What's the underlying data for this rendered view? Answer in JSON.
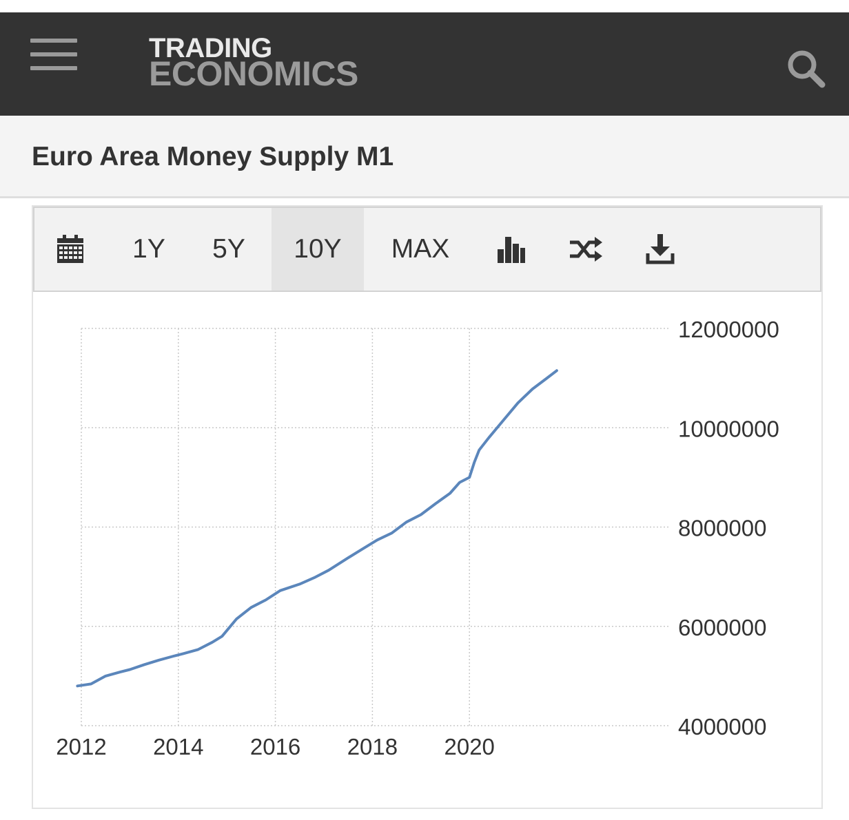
{
  "header": {
    "logo_line1": "TRADING",
    "logo_line2": "ECONOMICS",
    "menu_icon": "hamburger-menu-icon",
    "search_icon": "search-icon",
    "background": "#333333"
  },
  "page": {
    "title": "Euro Area Money Supply M1"
  },
  "toolbar": {
    "calendar_icon": "calendar-icon",
    "ranges": [
      "1Y",
      "5Y",
      "10Y",
      "MAX"
    ],
    "active_range": "10Y",
    "bar_chart_icon": "bar-chart-icon",
    "compare_icon": "shuffle-icon",
    "download_icon": "download-icon"
  },
  "chart_data": {
    "type": "line",
    "title": "",
    "xlabel": "",
    "ylabel": "",
    "x_ticks": [
      "2012",
      "2014",
      "2016",
      "2018",
      "2020"
    ],
    "y_ticks": [
      "4000000",
      "6000000",
      "8000000",
      "10000000",
      "12000000"
    ],
    "xlim": [
      2012,
      2022
    ],
    "ylim": [
      4000000,
      12000000
    ],
    "y_axis_position": "right",
    "grid": "dotted",
    "line_color": "#5b86bb",
    "series": [
      {
        "x": [
          2011.92,
          2012.2,
          2012.5,
          2012.8,
          2013.0,
          2013.3,
          2013.6,
          2013.9,
          2014.1,
          2014.4,
          2014.7,
          2014.9,
          2015.2,
          2015.5,
          2015.8,
          2016.1,
          2016.5,
          2016.8,
          2017.1,
          2017.5,
          2017.8,
          2018.1,
          2018.4,
          2018.7,
          2019.0,
          2019.3,
          2019.6,
          2019.8,
          2020.0,
          2020.1,
          2020.2,
          2020.4,
          2020.7,
          2021.0,
          2021.3,
          2021.6,
          2021.8
        ],
        "y": [
          4800000,
          4840000,
          5000000,
          5080000,
          5130000,
          5230000,
          5320000,
          5400000,
          5450000,
          5530000,
          5680000,
          5800000,
          6150000,
          6380000,
          6530000,
          6720000,
          6850000,
          6980000,
          7130000,
          7380000,
          7560000,
          7740000,
          7880000,
          8100000,
          8250000,
          8470000,
          8680000,
          8900000,
          9000000,
          9300000,
          9550000,
          9800000,
          10150000,
          10500000,
          10780000,
          11000000,
          11150000
        ]
      }
    ]
  }
}
